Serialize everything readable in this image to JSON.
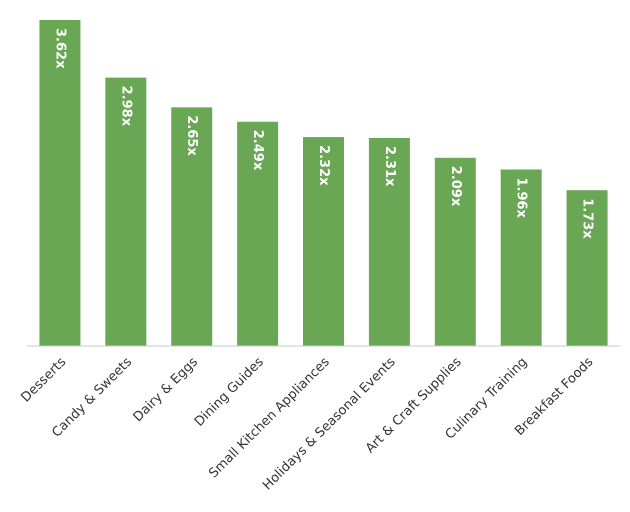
{
  "chart_data": {
    "type": "bar",
    "categories": [
      "Desserts",
      "Candy & Sweets",
      "Dairy & Eggs",
      "Dining Guides",
      "Small Kitchen Appliances",
      "Holidays & Seasonal Events",
      "Art & Craft Supplies",
      "Culinary Training",
      "Breakfast Foods"
    ],
    "values": [
      3.62,
      2.98,
      2.65,
      2.49,
      2.32,
      2.31,
      2.09,
      1.96,
      1.73
    ],
    "value_labels": [
      "3.62x",
      "2.98x",
      "2.65x",
      "2.49x",
      "2.32x",
      "2.31x",
      "2.09x",
      "1.96x",
      "1.73x"
    ],
    "color": "#6aa755"
  }
}
